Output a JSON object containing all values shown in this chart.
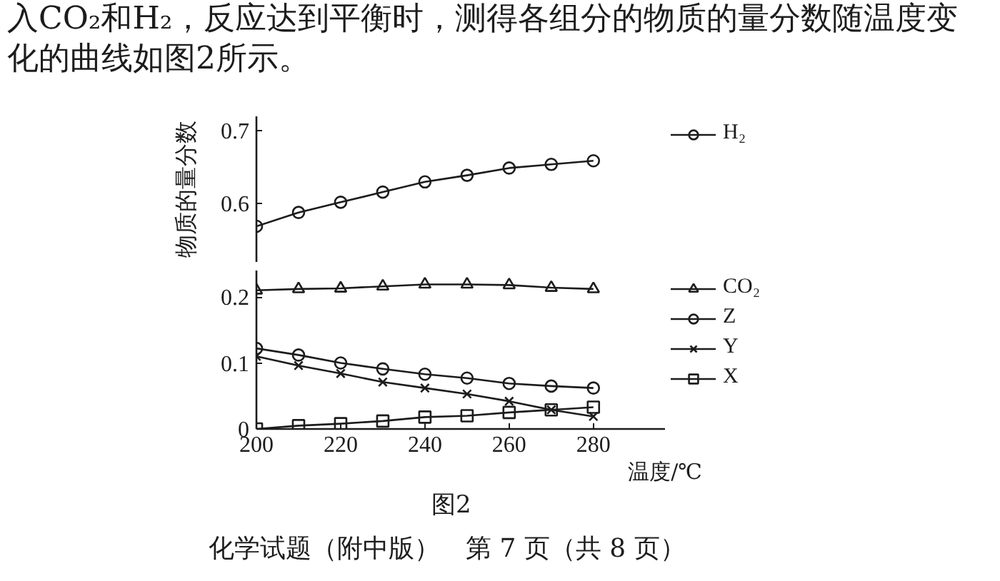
{
  "chart_data": [
    {
      "type": "line",
      "annotations": [
        "入CO₂和H₂，反应达到平衡时，测得各组分的物质的量分数随温度变",
        "化的曲线如图2所示。"
      ],
      "ylabel": "物质的量分数",
      "x": [
        200,
        210,
        220,
        230,
        240,
        250,
        260,
        270,
        280
      ],
      "series": [
        {
          "name": "H₂",
          "color": "#1c1c1c",
          "marker": "circle",
          "values": [
            0.569,
            0.588,
            0.602,
            0.616,
            0.63,
            0.639,
            0.649,
            0.654,
            0.659
          ]
        }
      ],
      "ylim": [
        0.52,
        0.72
      ],
      "yticks": [
        0.6,
        0.7
      ],
      "tick_labels": "y",
      "legend": "top right"
    },
    {
      "type": "line",
      "xlabel": "温度/℃",
      "annotations": [
        "图2",
        "化学试题（附中版）　第 7 页（共 8 页）"
      ],
      "x": [
        200,
        210,
        220,
        230,
        240,
        250,
        260,
        270,
        280
      ],
      "series": [
        {
          "name": "CO₂",
          "color": "#1c1c1c",
          "marker": "triangle",
          "values": [
            0.21,
            0.212,
            0.213,
            0.216,
            0.219,
            0.219,
            0.218,
            0.214,
            0.212
          ]
        },
        {
          "name": "Z",
          "color": "#1c1c1c",
          "marker": "circle",
          "values": [
            0.122,
            0.112,
            0.1,
            0.091,
            0.083,
            0.077,
            0.069,
            0.065,
            0.062
          ]
        },
        {
          "name": "Y",
          "color": "#1c1c1c",
          "marker": "cross",
          "values": [
            0.11,
            0.096,
            0.084,
            0.071,
            0.062,
            0.053,
            0.042,
            0.029,
            0.019
          ]
        },
        {
          "name": "X",
          "color": "#1c1c1c",
          "marker": "square",
          "values": [
            0,
            0.005,
            0.008,
            0.012,
            0.018,
            0.02,
            0.025,
            0.029,
            0.033
          ]
        }
      ],
      "xlim": [
        200,
        297
      ],
      "ylim": [
        0,
        0.24
      ],
      "xticks": [
        200,
        220,
        240,
        260,
        280
      ],
      "yticks": [
        0,
        0.1,
        0.2
      ],
      "legend": "top right"
    }
  ]
}
